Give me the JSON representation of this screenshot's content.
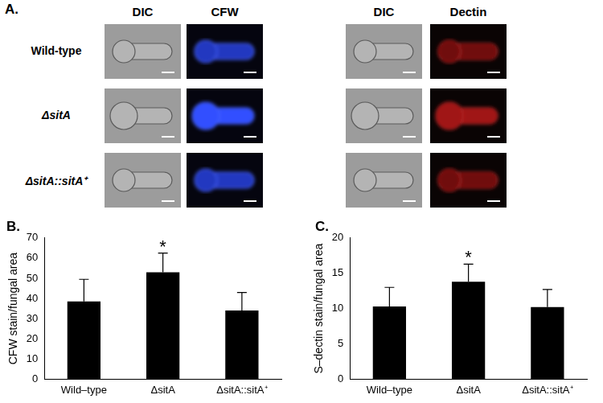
{
  "figure": {
    "panel_labels": [
      "A.",
      "B.",
      "C."
    ]
  },
  "image_panel": {
    "left_columns": [
      "DIC",
      "CFW"
    ],
    "right_columns": [
      "DIC",
      "Dectin"
    ],
    "rows": [
      "Wild-type",
      "ΔsitA",
      "ΔsitA::sitA⁺"
    ]
  },
  "chart_data": [
    {
      "type": "bar",
      "y_label": "CFW stain/fungal area",
      "categories": [
        "Wild–type",
        "ΔsitA",
        "ΔsitA::sitA⁺"
      ],
      "values": [
        38.5,
        53,
        34
      ],
      "errors": [
        11,
        9.5,
        9
      ],
      "color": "#000000",
      "ylim": [
        0,
        70
      ],
      "yticks": [
        0,
        10,
        20,
        30,
        40,
        50,
        60,
        70
      ],
      "grid": false,
      "annotations": [
        {
          "category": "ΔsitA",
          "text": "*"
        }
      ]
    },
    {
      "type": "bar",
      "y_label": "S–dectin stain/fungal area",
      "categories": [
        "Wild–type",
        "ΔsitA",
        "ΔsitA::sitA⁺"
      ],
      "values": [
        10.3,
        13.8,
        10.2
      ],
      "errors": [
        2.7,
        2.5,
        2.5
      ],
      "color": "#000000",
      "ylim": [
        0,
        20
      ],
      "yticks": [
        0,
        5,
        10,
        15,
        20
      ],
      "grid": false,
      "annotations": [
        {
          "category": "ΔsitA",
          "text": "*"
        }
      ]
    }
  ]
}
